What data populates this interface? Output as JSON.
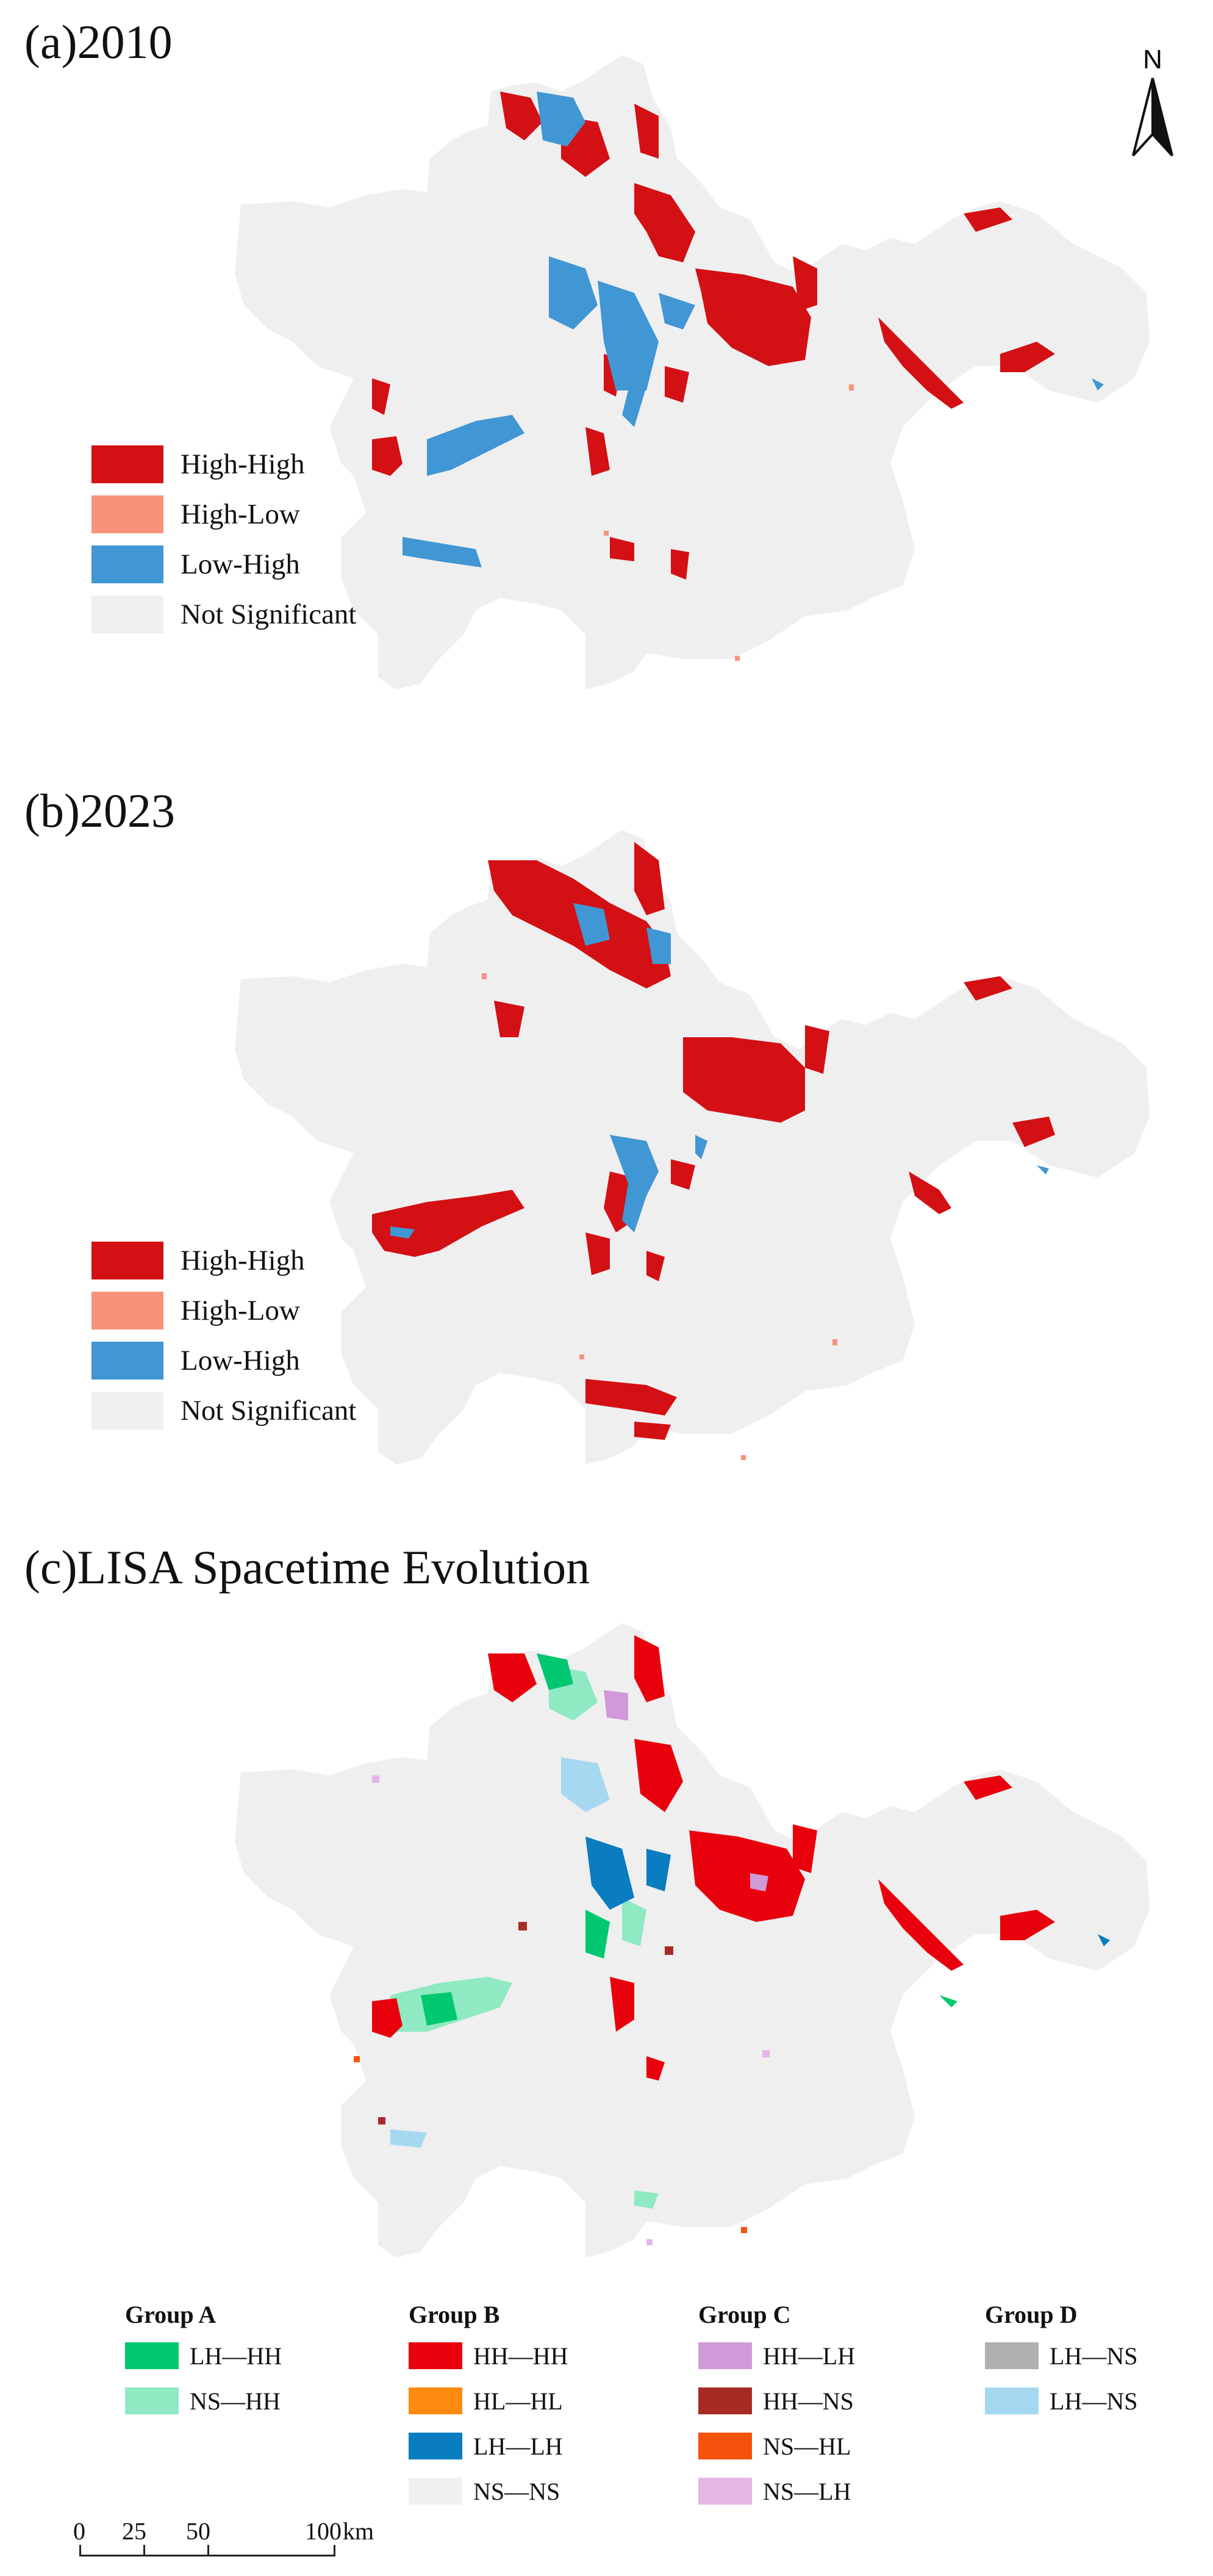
{
  "panels": [
    {
      "title": "(a)2010"
    },
    {
      "title": "(b)2023"
    },
    {
      "title": "(c)LISA Spacetime Evolution"
    }
  ],
  "north_arrow": {
    "label": "N"
  },
  "lisa_legend": [
    {
      "label": "High-High",
      "color": "#D31014",
      "icon": "high-high-swatch"
    },
    {
      "label": "High-Low",
      "color": "#F6937A",
      "icon": "high-low-swatch"
    },
    {
      "label": "Low-High",
      "color": "#4196D4",
      "icon": "low-high-swatch"
    },
    {
      "label": "Not Significant",
      "color": "#EFEFEF",
      "icon": "not-significant-swatch"
    }
  ],
  "evolution_legend": [
    {
      "title": "Group A",
      "items": [
        {
          "label": "LH—HH",
          "color": "#00C871"
        },
        {
          "label": "NS—HH",
          "color": "#8FE9C3"
        }
      ]
    },
    {
      "title": "Group B",
      "items": [
        {
          "label": "HH—HH",
          "color": "#E8000D"
        },
        {
          "label": "HL—HL",
          "color": "#FF8A10"
        },
        {
          "label": "LH—LH",
          "color": "#0A7CC0"
        },
        {
          "label": "NS—NS",
          "color": "#F0F0F0"
        }
      ]
    },
    {
      "title": "Group C",
      "items": [
        {
          "label": "HH—LH",
          "color": "#D09AD8"
        },
        {
          "label": "HH—NS",
          "color": "#A82A24"
        },
        {
          "label": "NS—HL",
          "color": "#F5520E"
        },
        {
          "label": "NS—LH",
          "color": "#E7B6E6"
        }
      ]
    },
    {
      "title": "Group D",
      "items": [
        {
          "label": "LH—NS",
          "color": "#B0B0B0"
        },
        {
          "label": "LH—NS",
          "color": "#A7D8F1"
        }
      ]
    }
  ],
  "scale_bar": {
    "labels": [
      "0",
      "25",
      "50",
      "100"
    ],
    "unit": "km"
  },
  "colors": {
    "background_region": "#EFEFEF"
  }
}
